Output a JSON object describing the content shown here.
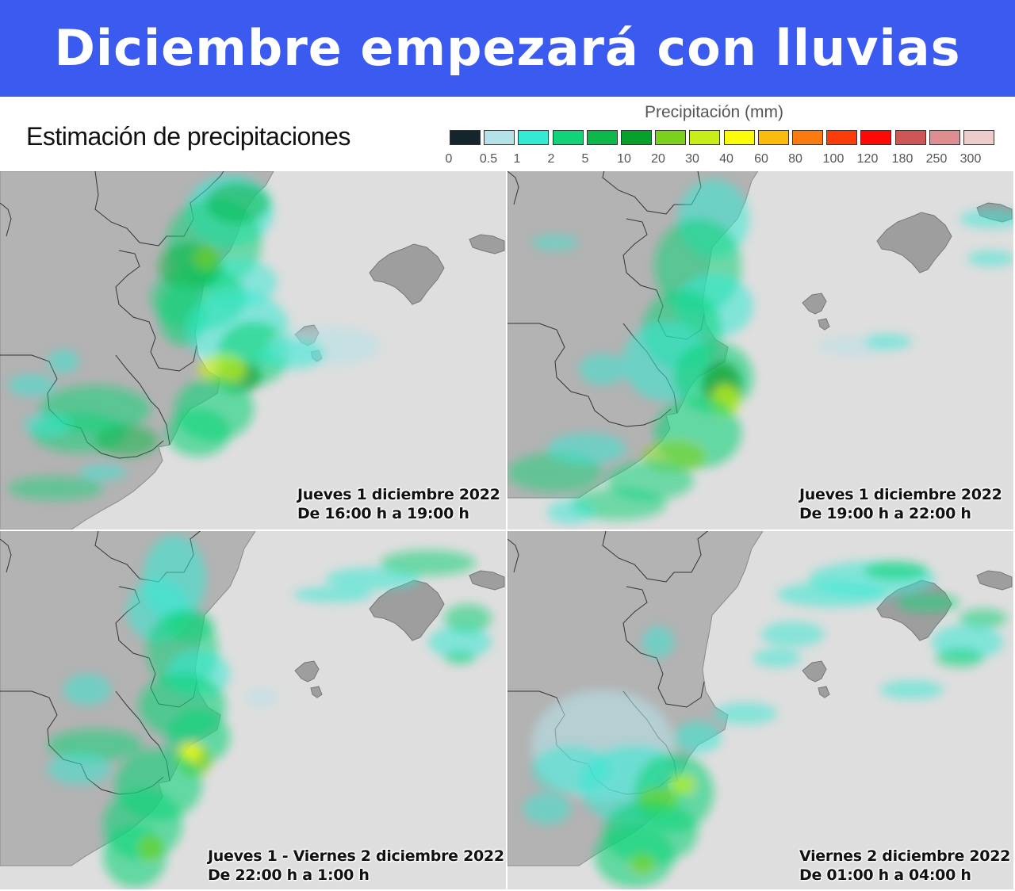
{
  "header": {
    "title": "Diciembre empezará con lluvias"
  },
  "legend": {
    "subtitle": "Estimación de precipitaciones",
    "title": "Precipitación (mm)",
    "ticks": [
      "0",
      "0.5",
      "1",
      "2",
      "5",
      "10",
      "20",
      "30",
      "40",
      "60",
      "80",
      "100",
      "120",
      "180",
      "250",
      "300"
    ],
    "colors": [
      "#14262b",
      "#b5e1e8",
      "#33ead4",
      "#12d37a",
      "#0db84a",
      "#08a02d",
      "#7bd11e",
      "#c8ee1a",
      "#fcfc09",
      "#fbbc0e",
      "#fc7b0f",
      "#fc3d09",
      "#fd0a06",
      "#cf5656",
      "#de8e8f",
      "#eccccc"
    ]
  },
  "panels": [
    {
      "line1": "Jueves 1 diciembre 2022",
      "line2": "De 16:00 h a 19:00 h"
    },
    {
      "line1": "Jueves 1 diciembre 2022",
      "line2": "De 19:00 h a 22:00 h"
    },
    {
      "line1": "Jueves 1 - Viernes 2 diciembre 2022",
      "line2": "De 22:00 h a 1:00 h"
    },
    {
      "line1": "Viernes 2 diciembre 2022",
      "line2": "De 01:00 h a 04:00 h"
    }
  ],
  "map_colors": {
    "sea": "#dedede",
    "land": "#b3b3b3",
    "land_dark": "#9e9e9e",
    "border": "#333333"
  }
}
